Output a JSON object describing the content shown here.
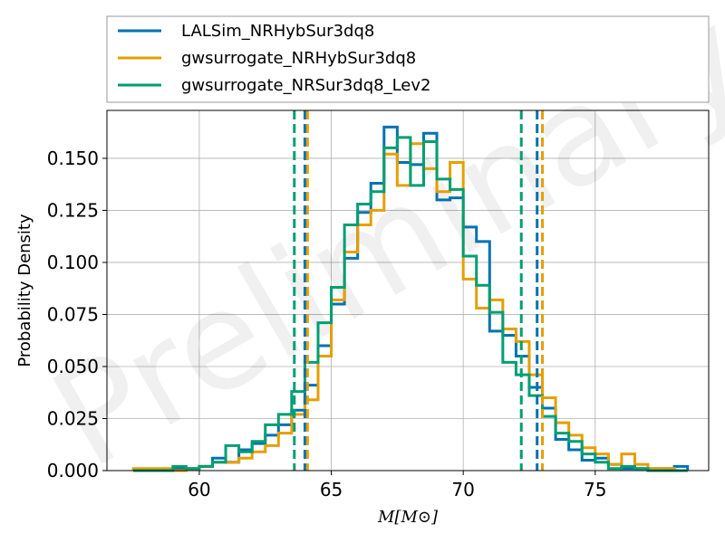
{
  "chart_data": {
    "type": "histogram",
    "watermark": "Preliminary",
    "xlabel": "M[M⊙]",
    "ylabel": "Probability Density",
    "xlim": [
      56.5,
      79.3
    ],
    "ylim": [
      0,
      0.173
    ],
    "xticks": [
      60,
      65,
      70,
      75
    ],
    "yticks": [
      "0.000",
      "0.025",
      "0.050",
      "0.075",
      "0.100",
      "0.125",
      "0.150"
    ],
    "grid": true,
    "legend_position": "top, above plot",
    "bin_edges": [
      57.5,
      58.0,
      58.5,
      59.0,
      59.5,
      60.0,
      60.5,
      61.0,
      61.5,
      62.0,
      62.5,
      63.0,
      63.5,
      64.0,
      64.5,
      65.0,
      65.5,
      66.0,
      66.5,
      67.0,
      67.5,
      68.0,
      68.5,
      69.0,
      69.5,
      70.0,
      70.5,
      71.0,
      71.5,
      72.0,
      72.5,
      73.0,
      73.5,
      74.0,
      74.5,
      75.0,
      75.5,
      76.0,
      76.5,
      77.0,
      77.5,
      78.0,
      78.5
    ],
    "series": [
      {
        "name": "LALSim_NRHybSur3dq8",
        "color": "#0072B2",
        "values": [
          0,
          0,
          0,
          0.001,
          0.001,
          0.002,
          0.006,
          0.004,
          0.01,
          0.013,
          0.017,
          0.022,
          0.029,
          0.041,
          0.06,
          0.08,
          0.102,
          0.124,
          0.138,
          0.165,
          0.148,
          0.147,
          0.162,
          0.13,
          0.131,
          0.117,
          0.11,
          0.067,
          0.065,
          0.055,
          0.04,
          0.03,
          0.015,
          0.01,
          0.005,
          0.006,
          0.003,
          0.001,
          0.001,
          0.001,
          0.001,
          0.002
        ],
        "ci": [
          64.0,
          72.8
        ]
      },
      {
        "name": "gwsurrogate_NRHybSur3dq8",
        "color": "#E69F00",
        "values": [
          0.001,
          0.001,
          0.001,
          0,
          0.001,
          0.002,
          0.004,
          0.004,
          0.006,
          0.009,
          0.012,
          0.018,
          0.027,
          0.034,
          0.055,
          0.082,
          0.105,
          0.118,
          0.125,
          0.152,
          0.137,
          0.157,
          0.145,
          0.134,
          0.148,
          0.092,
          0.078,
          0.082,
          0.068,
          0.062,
          0.046,
          0.035,
          0.023,
          0.017,
          0.011,
          0.008,
          0.003,
          0.008,
          0.003,
          0.001,
          0.001,
          0
        ],
        "ci": [
          64.1,
          73.0
        ]
      },
      {
        "name": "gwsurrogate_NRSur3dq8_Lev2",
        "color": "#009E73",
        "values": [
          0,
          0,
          0,
          0.002,
          0.001,
          0.002,
          0.004,
          0.012,
          0.009,
          0.014,
          0.022,
          0.027,
          0.038,
          0.052,
          0.071,
          0.088,
          0.118,
          0.128,
          0.134,
          0.155,
          0.16,
          0.137,
          0.158,
          0.14,
          0.135,
          0.103,
          0.089,
          0.076,
          0.052,
          0.046,
          0.036,
          0.026,
          0.018,
          0.014,
          0.008,
          0.004,
          0.001,
          0.002,
          0.001,
          0,
          0,
          0
        ],
        "ci": [
          63.6,
          72.2
        ]
      }
    ]
  }
}
